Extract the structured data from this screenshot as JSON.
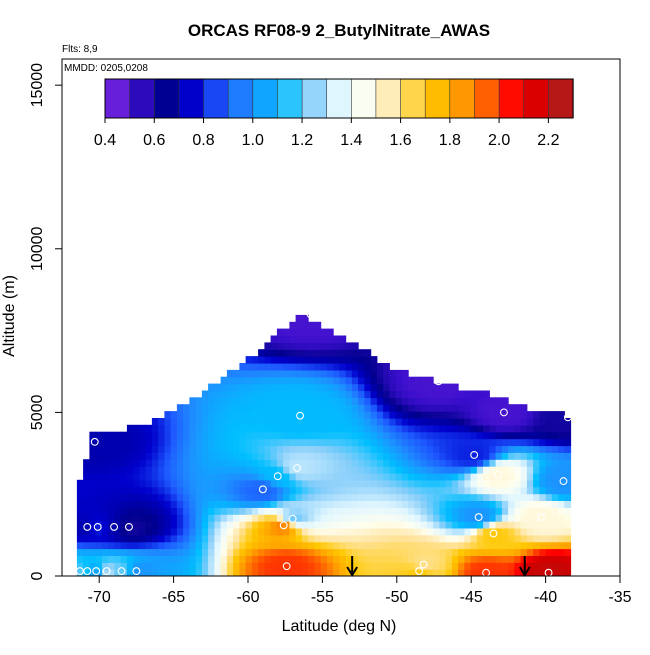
{
  "chart_data": {
    "type": "heatmap",
    "title": "ORCAS RF08-9 2_ButylNitrate_AWAS",
    "annotations": [
      "Flts: 8,9",
      "MMDD: 0205,0208"
    ],
    "xlabel": "Latitude (deg N)",
    "ylabel": "Altitude (m)",
    "xlim": [
      -72.5,
      -35
    ],
    "ylim": [
      0,
      15800
    ],
    "x_ticks": [
      -70,
      -65,
      -60,
      -55,
      -50,
      -45,
      -40,
      -35
    ],
    "x_tick_labels": [
      "-70",
      "-65",
      "-60",
      "-55",
      "-50",
      "-45",
      "-40",
      "-35"
    ],
    "y_ticks": [
      0,
      5000,
      10000,
      15000
    ],
    "y_tick_labels": [
      "0",
      "5000",
      "10000",
      "15000"
    ],
    "colorbar": {
      "range": [
        0.4,
        2.3
      ],
      "ticks": [
        0.4,
        0.6,
        0.8,
        1.0,
        1.2,
        1.4,
        1.6,
        1.8,
        2.0,
        2.2
      ],
      "tick_labels": [
        "0.4",
        "0.6",
        "0.8",
        "1.0",
        "1.2",
        "1.4",
        "1.6",
        "1.8",
        "2.0",
        "2.2"
      ],
      "colors": [
        "#8a2be2",
        "#3a0fcc",
        "#00008b",
        "#0000cd",
        "#1e5aff",
        "#1e90ff",
        "#00bfff",
        "#87cefa",
        "#e0f6ff",
        "#fffff0",
        "#ffe4a0",
        "#ffc800",
        "#ffa500",
        "#ff6400",
        "#ff0000",
        "#cd0000",
        "#a52a2a"
      ]
    },
    "curtain_envelope": {
      "latitude": [
        -71.5,
        -70.5,
        -68,
        -66,
        -63,
        -60,
        -57.5,
        -56.5,
        -56,
        -53,
        -50,
        -47,
        -44,
        -41,
        -38.5
      ],
      "top_altitude": [
        2400,
        4200,
        4400,
        4700,
        5500,
        6500,
        7500,
        8000,
        7800,
        7000,
        6200,
        5800,
        5500,
        5000,
        4800
      ]
    },
    "samples": [
      {
        "lat": -71.3,
        "alt": 150,
        "value": 1.2
      },
      {
        "lat": -70.8,
        "alt": 150,
        "value": 1.1
      },
      {
        "lat": -70.2,
        "alt": 150,
        "value": 1.0
      },
      {
        "lat": -69.5,
        "alt": 150,
        "value": 1.3
      },
      {
        "lat": -68.5,
        "alt": 150,
        "value": 1.2
      },
      {
        "lat": -67.5,
        "alt": 150,
        "value": 1.0
      },
      {
        "lat": -70.8,
        "alt": 1500,
        "value": 0.7
      },
      {
        "lat": -70.1,
        "alt": 1500,
        "value": 0.8
      },
      {
        "lat": -69.0,
        "alt": 1500,
        "value": 0.7
      },
      {
        "lat": -68.0,
        "alt": 1500,
        "value": 0.6
      },
      {
        "lat": -70.3,
        "alt": 4100,
        "value": 0.7
      },
      {
        "lat": -59.0,
        "alt": 2650,
        "value": 0.9
      },
      {
        "lat": -58.0,
        "alt": 3050,
        "value": 1.1
      },
      {
        "lat": -57.6,
        "alt": 1550,
        "value": 1.9
      },
      {
        "lat": -57.4,
        "alt": 300,
        "value": 2.0
      },
      {
        "lat": -57.0,
        "alt": 1750,
        "value": 1.2
      },
      {
        "lat": -56.7,
        "alt": 3300,
        "value": 1.3
      },
      {
        "lat": -56.5,
        "alt": 4900,
        "value": 1.1
      },
      {
        "lat": -55.8,
        "alt": 8000,
        "value": 0.5
      },
      {
        "lat": -48.5,
        "alt": 150,
        "value": 1.7
      },
      {
        "lat": -48.2,
        "alt": 350,
        "value": 1.6
      },
      {
        "lat": -47.2,
        "alt": 5950,
        "value": 0.5
      },
      {
        "lat": -44.8,
        "alt": 3700,
        "value": 0.8
      },
      {
        "lat": -44.5,
        "alt": 1800,
        "value": 1.0
      },
      {
        "lat": -44.0,
        "alt": 100,
        "value": 2.0
      },
      {
        "lat": -43.5,
        "alt": 1300,
        "value": 1.7
      },
      {
        "lat": -43.2,
        "alt": 3100,
        "value": 1.5
      },
      {
        "lat": -42.8,
        "alt": 5000,
        "value": 0.5
      },
      {
        "lat": -40.3,
        "alt": 1800,
        "value": 1.5
      },
      {
        "lat": -39.8,
        "alt": 100,
        "value": 2.2
      },
      {
        "lat": -38.8,
        "alt": 2900,
        "value": 1.0
      },
      {
        "lat": -38.5,
        "alt": 4850,
        "value": 0.6
      }
    ],
    "flight_markers_latitude": [
      -53.0,
      -41.4
    ]
  }
}
